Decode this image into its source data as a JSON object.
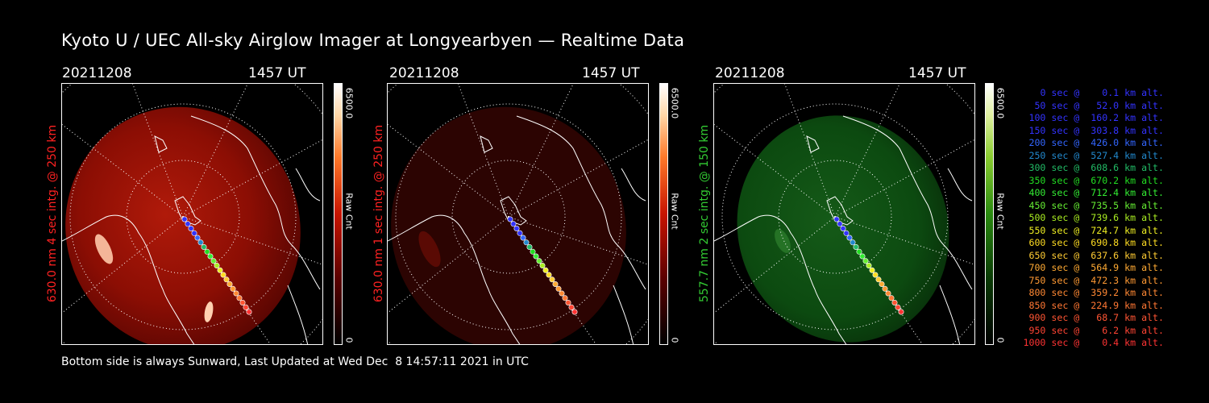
{
  "title": "Kyoto U / UEC All-sky Airglow Imager at Longyearbyen — Realtime Data",
  "footer": "Bottom side is always Sunward, Last Updated at Wed Dec  8 14:57:11 2021 in UTC",
  "panels": [
    {
      "date": "20211208",
      "time": "1457 UT",
      "ylabel": "630.0 nm 4 sec intg. @ 250 km",
      "color": "#ff2222",
      "cbar_max": "6500.0",
      "cbar_min": "0",
      "cbar_unit": "Raw Cnt"
    },
    {
      "date": "20211208",
      "time": "1457 UT",
      "ylabel": "630.0 nm 1 sec intg. @ 250 km",
      "color": "#ff2222",
      "cbar_max": "6500.0",
      "cbar_min": "0",
      "cbar_unit": "Raw Cnt"
    },
    {
      "date": "20211208",
      "time": "1457 UT",
      "ylabel": "557.7 nm 2 sec intg. @ 150 km",
      "color": "#33cc33",
      "cbar_max": "6500.0",
      "cbar_min": "0",
      "cbar_unit": "Raw Cnt"
    }
  ],
  "legend": [
    {
      "text": "0 sec @    0.1 km alt.",
      "color": "#3333ff"
    },
    {
      "text": "50 sec @   52.0 km alt.",
      "color": "#3333ff"
    },
    {
      "text": "100 sec @  160.2 km alt.",
      "color": "#3333ff"
    },
    {
      "text": "150 sec @  303.8 km alt.",
      "color": "#3333ff"
    },
    {
      "text": "200 sec @  426.0 km alt.",
      "color": "#3366ff"
    },
    {
      "text": "250 sec @  527.4 km alt.",
      "color": "#2288cc"
    },
    {
      "text": "300 sec @  608.6 km alt.",
      "color": "#22bb66"
    },
    {
      "text": "350 sec @  670.2 km alt.",
      "color": "#22dd22"
    },
    {
      "text": "400 sec @  712.4 km alt.",
      "color": "#33ee33"
    },
    {
      "text": "450 sec @  735.5 km alt.",
      "color": "#66ee33"
    },
    {
      "text": "500 sec @  739.6 km alt.",
      "color": "#aaee22"
    },
    {
      "text": "550 sec @  724.7 km alt.",
      "color": "#eeee22"
    },
    {
      "text": "600 sec @  690.8 km alt.",
      "color": "#ffdd22"
    },
    {
      "text": "650 sec @  637.6 km alt.",
      "color": "#ffcc33"
    },
    {
      "text": "700 sec @  564.9 km alt.",
      "color": "#ffaa33"
    },
    {
      "text": "750 sec @  472.3 km alt.",
      "color": "#ff9933"
    },
    {
      "text": "800 sec @  359.2 km alt.",
      "color": "#ff8833"
    },
    {
      "text": "850 sec @  224.9 km alt.",
      "color": "#ff7733"
    },
    {
      "text": "900 sec @   68.7 km alt.",
      "color": "#ff5533"
    },
    {
      "text": "950 sec @    6.2 km alt.",
      "color": "#ff4433"
    },
    {
      "text": "1000 sec @    0.4 km alt.",
      "color": "#ff3333"
    }
  ],
  "colors": {
    "background": "#000000",
    "red_emission": "#8c0e04",
    "green_emission": "#0c4a10",
    "trail": [
      "#3333ff",
      "#2288cc",
      "#22dd22",
      "#eeee22",
      "#ffaa33",
      "#ff3333"
    ]
  }
}
